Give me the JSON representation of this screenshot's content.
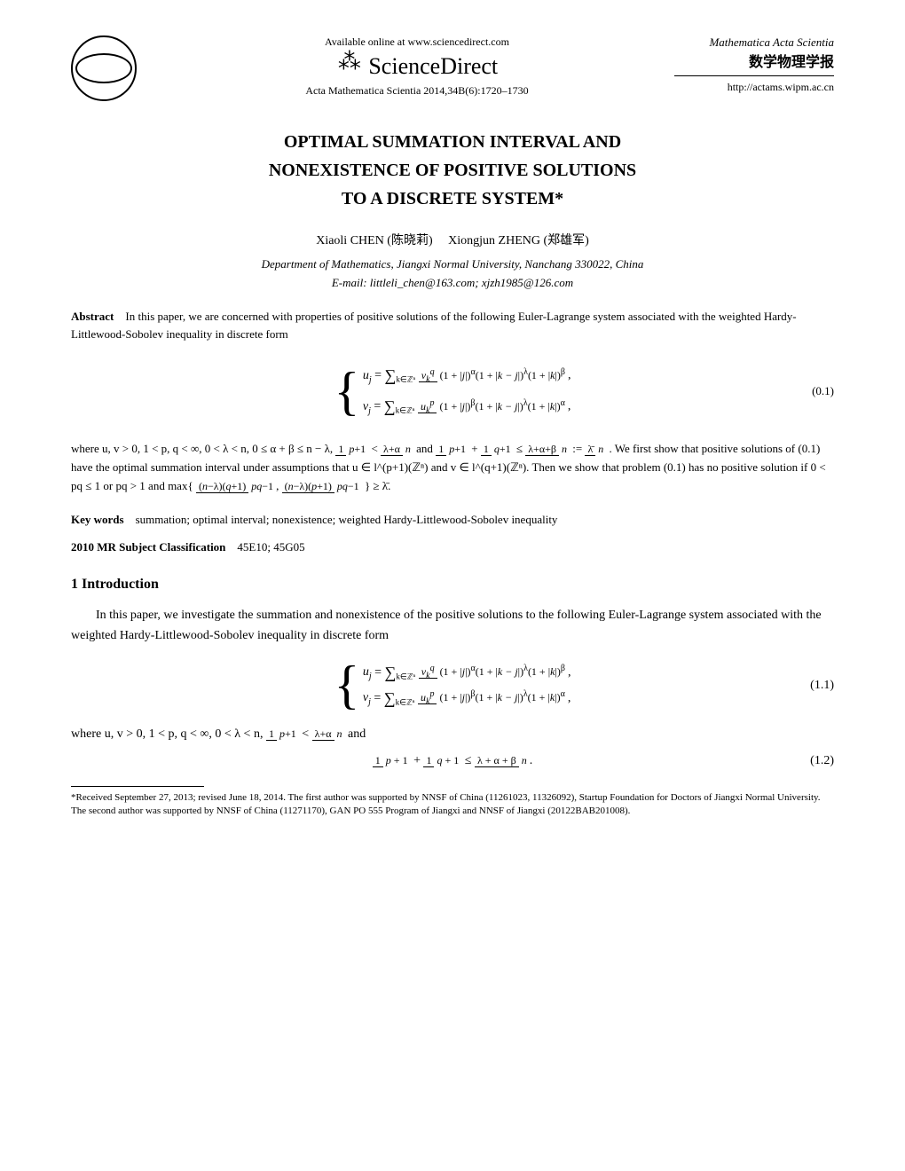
{
  "header": {
    "available_text": "Available online at www.sciencedirect.com",
    "sciencedirect": "ScienceDirect",
    "journal_ref": "Acta Mathematica Scientia 2014,34B(6):1720–1730",
    "scientia_line1": "Mathematica Acta Scientia",
    "chinese": "数学物理学报",
    "url": "http://actams.wipm.ac.cn"
  },
  "title": {
    "line1": "OPTIMAL SUMMATION INTERVAL AND",
    "line2": "NONEXISTENCE OF POSITIVE SOLUTIONS",
    "line3": "TO A DISCRETE SYSTEM*"
  },
  "authors": {
    "author1": "Xiaoli CHEN (陈晓莉)",
    "author2": "Xiongjun ZHENG (郑雄军)"
  },
  "affiliation": {
    "dept": "Department of Mathematics, Jiangxi Normal University, Nanchang 330022, China",
    "email": "E-mail: littleli_chen@163.com; xjzh1985@126.com"
  },
  "abstract": {
    "label": "Abstract",
    "text": "In this paper, we are concerned with properties of positive solutions of the following Euler-Lagrange system associated with the weighted Hardy-Littlewood-Sobolev inequality in discrete form",
    "eq_label": "(0.1)",
    "conditions": "where u, v > 0, 1 < p, q < ∞, 0 < λ < n, 0 ≤ α + β ≤ n − λ, ",
    "conditions2": " and ",
    "conditions3": ". We first show that positive solutions of (0.1) have the optimal summation interval under assumptions that u ∈ l^(p+1)(ℤⁿ) and v ∈ l^(q+1)(ℤⁿ). Then we show that problem (0.1) has no positive solution if 0 < pq ≤ 1 or pq > 1 and max{",
    "conditions4": "} ≥ λ̄."
  },
  "keywords": {
    "label": "Key words",
    "text": "summation; optimal interval; nonexistence; weighted Hardy-Littlewood-Sobolev inequality"
  },
  "msc": {
    "label": "2010 MR Subject Classification",
    "text": "45E10; 45G05"
  },
  "section1": {
    "heading": "1   Introduction",
    "para1": "In this paper, we investigate the summation and nonexistence of the positive solutions to the following Euler-Lagrange system associated with the weighted Hardy-Littlewood-Sobolev inequality in discrete form",
    "eq_label": "(1.1)",
    "where_text": "where u, v > 0, 1 < p, q < ∞, 0 < λ < n, ",
    "and_text": " and",
    "eq2_label": "(1.2)"
  },
  "footnote": {
    "text": "*Received September 27, 2013; revised June 18, 2014. The first author was supported by NNSF of China (11261023, 11326092), Startup Foundation for Doctors of Jiangxi Normal University. The second author was supported by NNSF of China (11271170), GAN PO 555 Program of Jiangxi and NNSF of Jiangxi (20122BAB201008)."
  }
}
